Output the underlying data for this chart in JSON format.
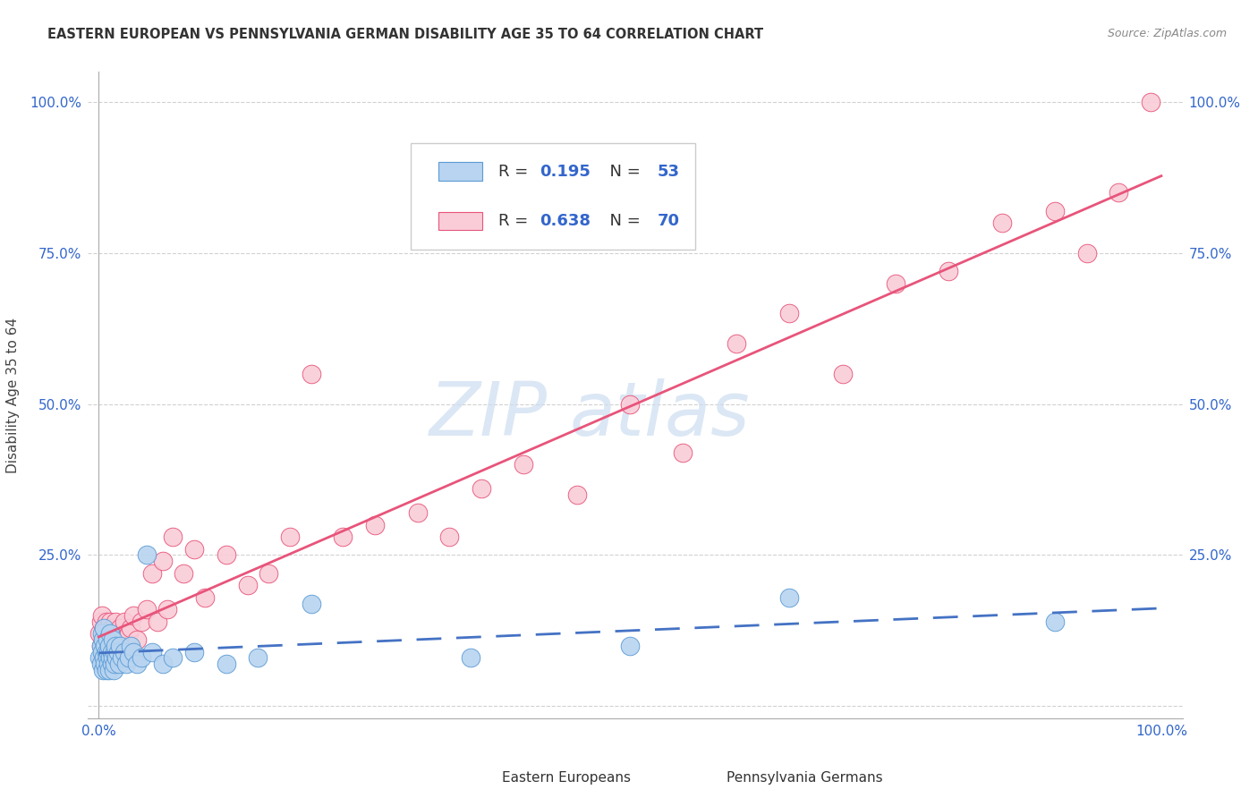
{
  "title": "EASTERN EUROPEAN VS PENNSYLVANIA GERMAN DISABILITY AGE 35 TO 64 CORRELATION CHART",
  "source": "Source: ZipAtlas.com",
  "ylabel": "Disability Age 35 to 64",
  "ee_color_fill": "#b8d4f0",
  "ee_color_edge": "#5b9bd5",
  "pg_color_fill": "#f9ccd8",
  "pg_color_edge": "#e8547a",
  "ee_line_color": "#4472c4",
  "pg_line_color": "#e8547a",
  "background_color": "#ffffff",
  "watermark_color": "#ccddf0",
  "legend_R_ee": "0.195",
  "legend_N_ee": "53",
  "legend_R_pg": "0.638",
  "legend_N_pg": "70",
  "xlim": [
    0.0,
    1.0
  ],
  "ylim": [
    0.0,
    1.0
  ],
  "x_ticks": [
    0.0,
    0.25,
    0.5,
    0.75,
    1.0
  ],
  "y_ticks": [
    0.0,
    0.25,
    0.5,
    0.75,
    1.0
  ],
  "x_tick_labels": [
    "0.0%",
    "",
    "",
    "",
    "100.0%"
  ],
  "y_tick_labels_left": [
    "",
    "25.0%",
    "50.0%",
    "75.0%",
    "100.0%"
  ],
  "y_tick_labels_right": [
    "",
    "25.0%",
    "50.0%",
    "75.0%",
    "100.0%"
  ],
  "ee_x": [
    0.001,
    0.002,
    0.002,
    0.003,
    0.003,
    0.004,
    0.004,
    0.005,
    0.005,
    0.006,
    0.006,
    0.007,
    0.007,
    0.008,
    0.008,
    0.009,
    0.009,
    0.01,
    0.01,
    0.011,
    0.011,
    0.012,
    0.012,
    0.013,
    0.013,
    0.014,
    0.015,
    0.015,
    0.016,
    0.017,
    0.018,
    0.019,
    0.02,
    0.022,
    0.024,
    0.026,
    0.028,
    0.03,
    0.033,
    0.036,
    0.04,
    0.045,
    0.05,
    0.06,
    0.07,
    0.09,
    0.12,
    0.15,
    0.2,
    0.35,
    0.5,
    0.65,
    0.9
  ],
  "ee_y": [
    0.08,
    0.1,
    0.07,
    0.09,
    0.12,
    0.06,
    0.11,
    0.08,
    0.13,
    0.07,
    0.1,
    0.09,
    0.06,
    0.08,
    0.11,
    0.07,
    0.09,
    0.1,
    0.06,
    0.08,
    0.12,
    0.07,
    0.09,
    0.08,
    0.11,
    0.06,
    0.09,
    0.07,
    0.1,
    0.08,
    0.09,
    0.07,
    0.1,
    0.08,
    0.09,
    0.07,
    0.08,
    0.1,
    0.09,
    0.07,
    0.08,
    0.25,
    0.09,
    0.07,
    0.08,
    0.09,
    0.07,
    0.08,
    0.17,
    0.08,
    0.1,
    0.18,
    0.14
  ],
  "pg_x": [
    0.001,
    0.002,
    0.002,
    0.003,
    0.003,
    0.004,
    0.005,
    0.005,
    0.006,
    0.006,
    0.007,
    0.007,
    0.008,
    0.008,
    0.009,
    0.009,
    0.01,
    0.01,
    0.011,
    0.012,
    0.012,
    0.013,
    0.014,
    0.015,
    0.016,
    0.017,
    0.018,
    0.019,
    0.02,
    0.022,
    0.024,
    0.026,
    0.028,
    0.03,
    0.033,
    0.036,
    0.04,
    0.045,
    0.05,
    0.055,
    0.06,
    0.065,
    0.07,
    0.08,
    0.09,
    0.1,
    0.12,
    0.14,
    0.16,
    0.18,
    0.2,
    0.23,
    0.26,
    0.3,
    0.33,
    0.36,
    0.4,
    0.45,
    0.5,
    0.55,
    0.6,
    0.65,
    0.7,
    0.75,
    0.8,
    0.85,
    0.9,
    0.93,
    0.96,
    0.99
  ],
  "pg_y": [
    0.12,
    0.1,
    0.14,
    0.08,
    0.15,
    0.11,
    0.09,
    0.13,
    0.1,
    0.12,
    0.08,
    0.14,
    0.1,
    0.13,
    0.09,
    0.12,
    0.11,
    0.08,
    0.14,
    0.1,
    0.13,
    0.09,
    0.12,
    0.11,
    0.14,
    0.1,
    0.12,
    0.09,
    0.13,
    0.11,
    0.14,
    0.1,
    0.12,
    0.13,
    0.15,
    0.11,
    0.14,
    0.16,
    0.22,
    0.14,
    0.24,
    0.16,
    0.28,
    0.22,
    0.26,
    0.18,
    0.25,
    0.2,
    0.22,
    0.28,
    0.55,
    0.28,
    0.3,
    0.32,
    0.28,
    0.36,
    0.4,
    0.35,
    0.5,
    0.42,
    0.6,
    0.65,
    0.55,
    0.7,
    0.72,
    0.8,
    0.82,
    0.75,
    0.85,
    1.0
  ]
}
